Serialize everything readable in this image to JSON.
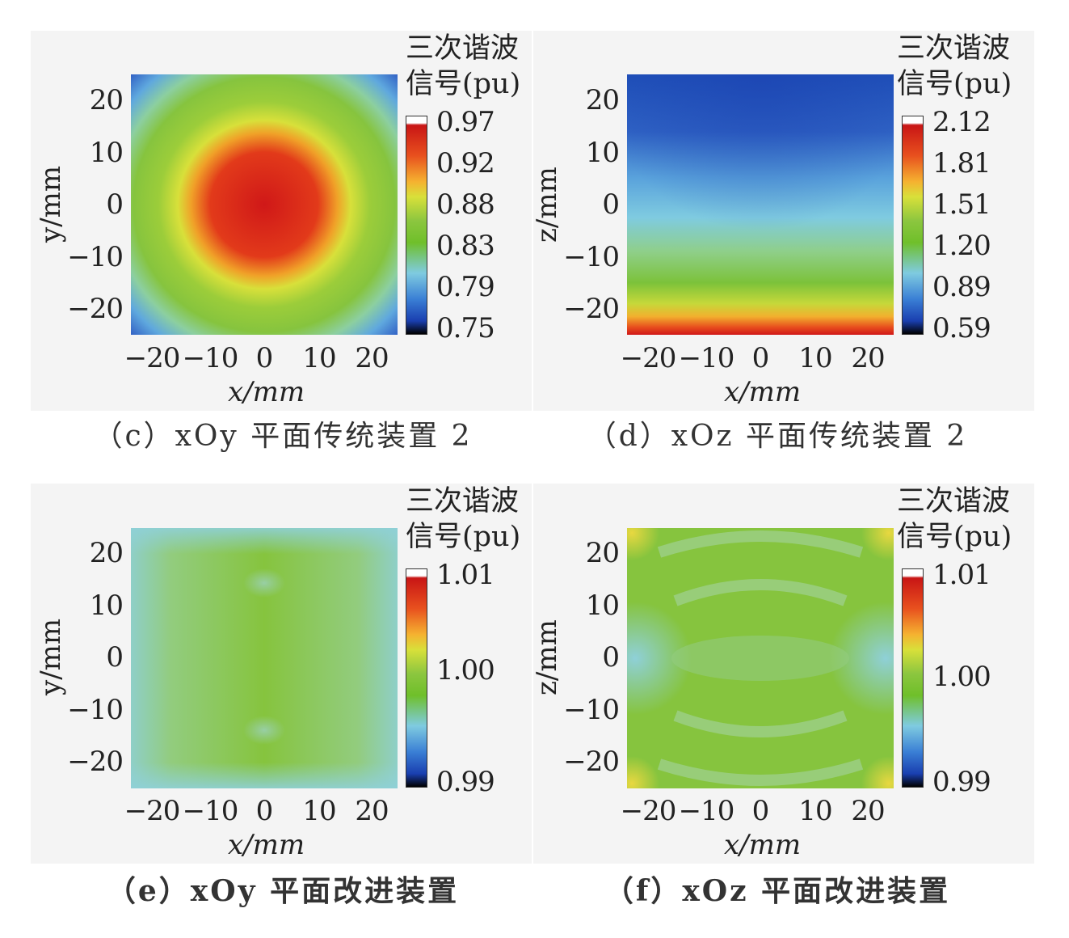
{
  "chart_data": [
    {
      "id": "c",
      "type": "heatmap",
      "caption": "（c）xOy 平面传统装置 2",
      "xlabel": "x/mm",
      "ylabel": "y/mm",
      "xlim": [
        -25,
        25
      ],
      "ylim": [
        -25,
        25
      ],
      "xticks": [
        "−20",
        "−10",
        "0",
        "10",
        "20"
      ],
      "yticks": [
        "20",
        "10",
        "0",
        "−10",
        "−20"
      ],
      "colorbar_title": [
        "三次谐波",
        "信号(pu)"
      ],
      "colorbar_ticks": [
        "0.97",
        "0.92",
        "0.88",
        "0.83",
        "0.79",
        "0.75"
      ],
      "value_range": [
        0.75,
        0.97
      ],
      "pattern": "circular maximum (~0.97) at center, decreasing radially to ~0.75 at corners"
    },
    {
      "id": "d",
      "type": "heatmap",
      "caption": "（d）xOz 平面传统装置 2",
      "xlabel": "x/mm",
      "ylabel": "z/mm",
      "xlim": [
        -25,
        25
      ],
      "ylim": [
        -25,
        25
      ],
      "xticks": [
        "−20",
        "−10",
        "0",
        "10",
        "20"
      ],
      "yticks": [
        "20",
        "10",
        "0",
        "−10",
        "−20"
      ],
      "colorbar_title": [
        "三次谐波",
        "信号(pu)"
      ],
      "colorbar_ticks": [
        "2.12",
        "1.81",
        "1.51",
        "1.20",
        "0.89",
        "0.59"
      ],
      "value_range": [
        0.59,
        2.12
      ],
      "pattern": "maximum (~2.12) at bottom edge z=-25, decreasing upward in arcs to ~0.59 at top"
    },
    {
      "id": "e",
      "type": "heatmap",
      "caption": "（e）xOy 平面改进装置",
      "xlabel": "x/mm",
      "ylabel": "y/mm",
      "xlim": [
        -25,
        25
      ],
      "ylim": [
        -25,
        25
      ],
      "xticks": [
        "−20",
        "−10",
        "0",
        "10",
        "20"
      ],
      "yticks": [
        "20",
        "10",
        "0",
        "−10",
        "−20"
      ],
      "colorbar_title": [
        "三次谐波",
        "信号(pu)"
      ],
      "colorbar_ticks": [
        "1.01",
        "1.00",
        "0.99"
      ],
      "value_range": [
        0.99,
        1.01
      ],
      "pattern": "nearly uniform ~1.00 with slightly lower values near edges and spots at y=±15"
    },
    {
      "id": "f",
      "type": "heatmap",
      "caption": "（f）xOz 平面改进装置",
      "xlabel": "x/mm",
      "ylabel": "z/mm",
      "xlim": [
        -25,
        25
      ],
      "ylim": [
        -25,
        25
      ],
      "xticks": [
        "−20",
        "−10",
        "0",
        "10",
        "20"
      ],
      "yticks": [
        "20",
        "10",
        "0",
        "−10",
        "−20"
      ],
      "colorbar_title": [
        "三次谐波",
        "信号(pu)"
      ],
      "colorbar_ticks": [
        "1.01",
        "1.00",
        "0.99"
      ],
      "value_range": [
        0.99,
        1.01
      ],
      "pattern": "~1.00 with arc bands, slightly lower at left/right center, slightly higher at corners"
    }
  ],
  "colors": {
    "colormap": [
      "#000000",
      "#1a3fb0",
      "#3a7fd5",
      "#6cc0e8",
      "#8cc63f",
      "#6fbf2a",
      "#d8e03a",
      "#f5b230",
      "#e8501e",
      "#d01818",
      "#ffffff"
    ],
    "panel_background": "#f4f4f4"
  }
}
